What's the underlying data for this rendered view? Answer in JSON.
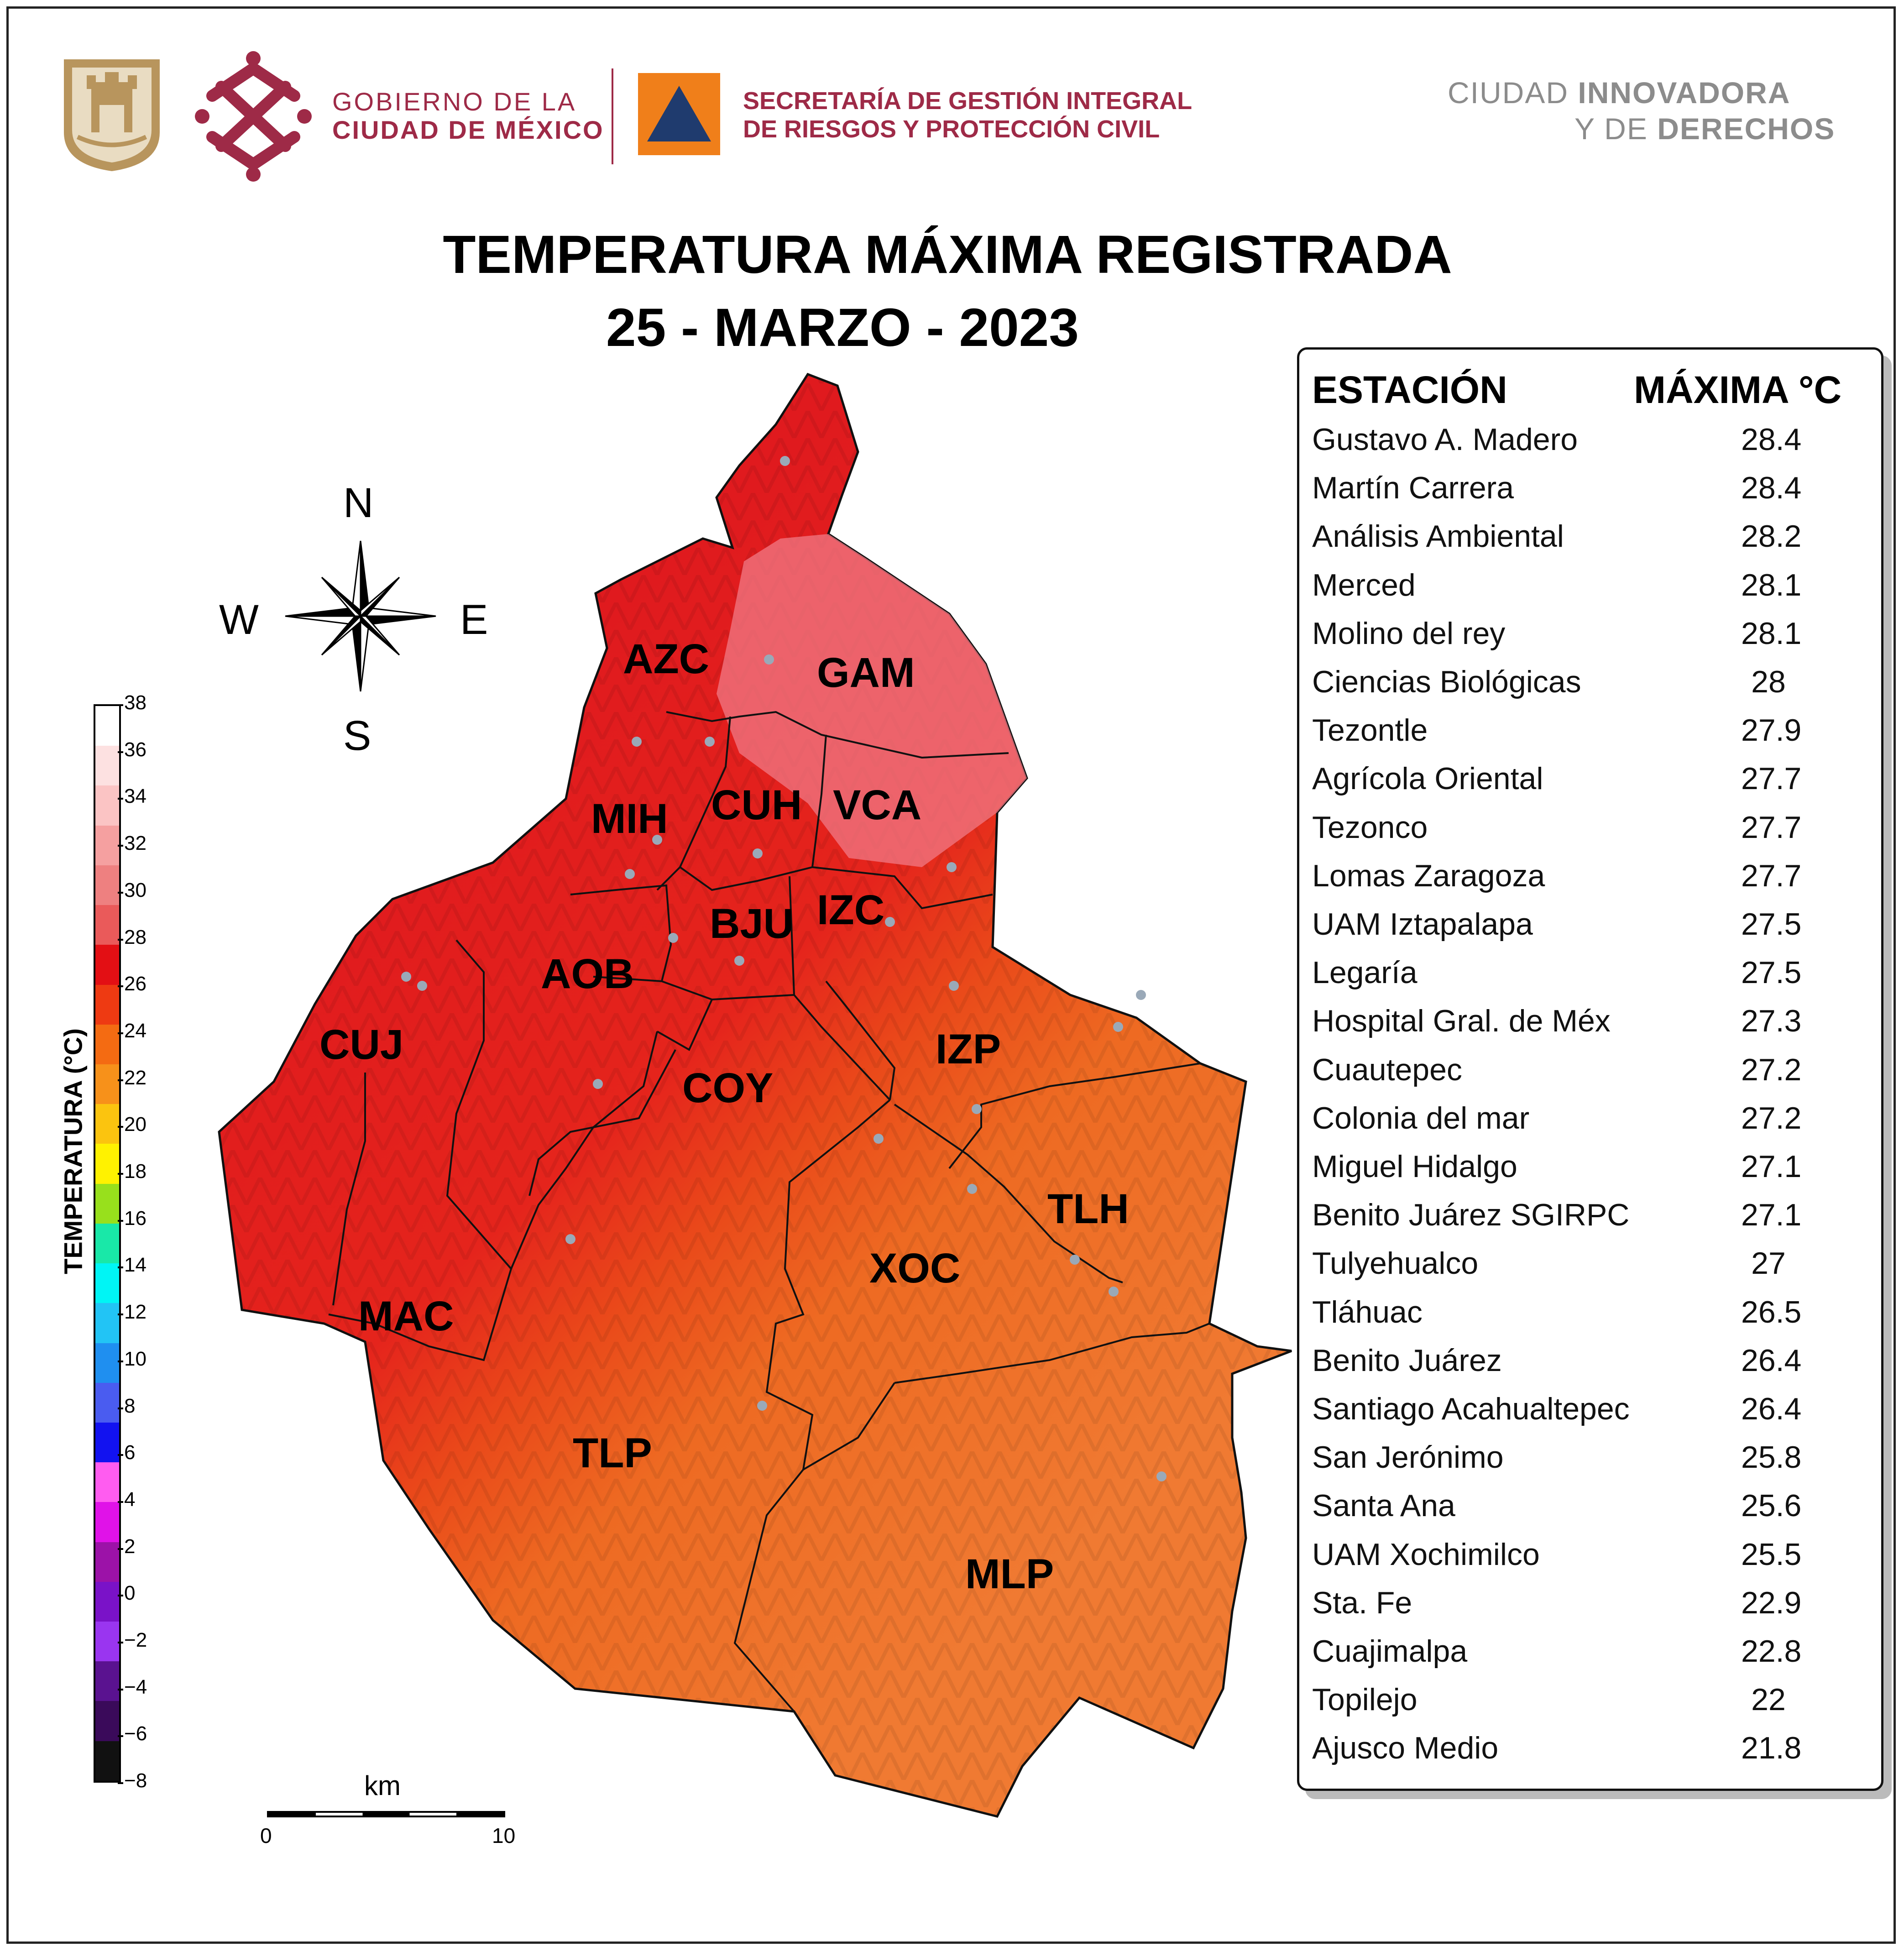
{
  "header": {
    "gov_line1": "GOBIERNO DE LA",
    "gov_line2": "CIUDAD DE MÉXICO",
    "sgirpc_line1": "SECRETARÍA DE GESTIÓN INTEGRAL",
    "sgirpc_line2": "DE RIESGOS Y PROTECCIÓN CIVIL",
    "slogan_line1_a": "CIUDAD",
    "slogan_line1_b": "INNOVADORA",
    "slogan_line2_a": "Y DE",
    "slogan_line2_b": "DERECHOS",
    "colors": {
      "gov_maroon": "#9e2a47",
      "sgirpc_orange": "#f07f1a",
      "sgirpc_navy": "#1f3b6e",
      "seal_gold": "#b8955d",
      "slogan_gray": "#8c8c8c"
    }
  },
  "title": {
    "line1": "TEMPERATURA MÁXIMA REGISTRADA",
    "line2": "25 - MARZO - 2023"
  },
  "compass": {
    "n": "N",
    "s": "S",
    "e": "E",
    "w": "W"
  },
  "colorbar": {
    "label": "TEMPERATURA (°C)",
    "ticks": [
      "38",
      "36",
      "34",
      "32",
      "30",
      "28",
      "26",
      "24",
      "22",
      "20",
      "18",
      "16",
      "14",
      "12",
      "10",
      "8",
      "6",
      "4",
      "2",
      "0",
      "−2",
      "−4",
      "−6",
      "−8"
    ],
    "colors": [
      "#ffffff",
      "#fde1e1",
      "#fbc4c4",
      "#f5a0a0",
      "#ee8080",
      "#ea5a5a",
      "#e30f14",
      "#ee3a12",
      "#f46b12",
      "#f7911a",
      "#fbc40f",
      "#fff200",
      "#98e01c",
      "#19e8a8",
      "#00f5f5",
      "#22c4f5",
      "#1f8ff0",
      "#4a5cf0",
      "#1212f0",
      "#ff5cf0",
      "#e012e8",
      "#9c12a8",
      "#7a12c8",
      "#9a35f0",
      "#5a1290",
      "#3a0a5a",
      "#111111"
    ]
  },
  "scale": {
    "unit": "km",
    "start": "0",
    "end": "10"
  },
  "districts": [
    {
      "code": "GAM"
    },
    {
      "code": "AZC"
    },
    {
      "code": "MIH"
    },
    {
      "code": "CUH"
    },
    {
      "code": "VCA"
    },
    {
      "code": "IZC"
    },
    {
      "code": "BJU"
    },
    {
      "code": "AOB"
    },
    {
      "code": "CUJ"
    },
    {
      "code": "IZP"
    },
    {
      "code": "COY"
    },
    {
      "code": "TLH"
    },
    {
      "code": "XOC"
    },
    {
      "code": "MAC"
    },
    {
      "code": "TLP"
    },
    {
      "code": "MLP"
    }
  ],
  "table": {
    "header_station": "ESTACIÓN",
    "header_max": "MÁXIMA °C",
    "rows": [
      {
        "station": "Gustavo A. Madero",
        "max": "28.4"
      },
      {
        "station": "Martín Carrera",
        "max": "28.4"
      },
      {
        "station": "Análisis Ambiental",
        "max": "28.2"
      },
      {
        "station": "Merced",
        "max": "28.1"
      },
      {
        "station": "Molino del rey",
        "max": "28.1"
      },
      {
        "station": "Ciencias Biológicas",
        "max": "28"
      },
      {
        "station": "Tezontle",
        "max": "27.9"
      },
      {
        "station": "Agrícola Oriental",
        "max": "27.7"
      },
      {
        "station": "Tezonco",
        "max": "27.7"
      },
      {
        "station": "Lomas Zaragoza",
        "max": "27.7"
      },
      {
        "station": "UAM Iztapalapa",
        "max": "27.5"
      },
      {
        "station": "Legaría",
        "max": "27.5"
      },
      {
        "station": "Hospital Gral. de Méx",
        "max": "27.3"
      },
      {
        "station": "Cuautepec",
        "max": "27.2"
      },
      {
        "station": "Colonia del mar",
        "max": "27.2"
      },
      {
        "station": "Miguel Hidalgo",
        "max": "27.1"
      },
      {
        "station": "Benito Juárez SGIRPC",
        "max": "27.1"
      },
      {
        "station": "Tulyehualco",
        "max": "27"
      },
      {
        "station": "Tláhuac",
        "max": "26.5"
      },
      {
        "station": "Benito Juárez",
        "max": "26.4"
      },
      {
        "station": "Santiago Acahualtepec",
        "max": "26.4"
      },
      {
        "station": "San Jerónimo",
        "max": "25.8"
      },
      {
        "station": "Santa Ana",
        "max": "25.6"
      },
      {
        "station": "UAM Xochimilco",
        "max": "25.5"
      },
      {
        "station": "Sta. Fe",
        "max": "22.9"
      },
      {
        "station": "Cuajimalpa",
        "max": "22.8"
      },
      {
        "station": "Topilejo",
        "max": "22"
      },
      {
        "station": "Ajusco Medio",
        "max": "21.8"
      }
    ]
  }
}
